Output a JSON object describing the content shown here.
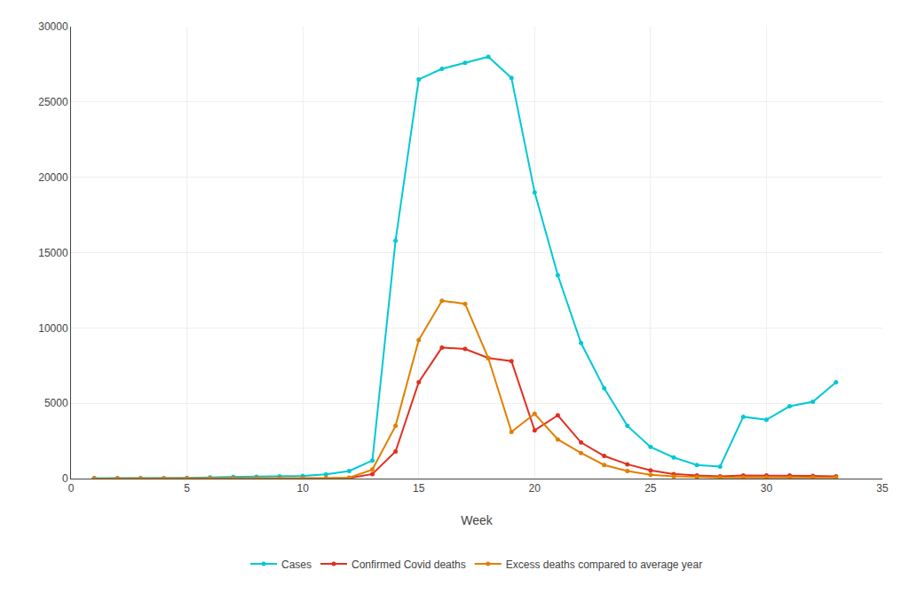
{
  "chart_data": {
    "type": "line",
    "xlabel": "Week",
    "x": [
      1,
      2,
      3,
      4,
      5,
      6,
      7,
      8,
      9,
      10,
      11,
      12,
      13,
      14,
      15,
      16,
      17,
      18,
      19,
      20,
      21,
      22,
      23,
      24,
      25,
      26,
      27,
      28,
      29,
      30,
      31,
      32,
      33
    ],
    "series": [
      {
        "name": "Cases",
        "color": "#00c8d4",
        "marker": "circle",
        "values": [
          30,
          30,
          30,
          30,
          50,
          80,
          100,
          120,
          150,
          180,
          280,
          500,
          1200,
          15800,
          26500,
          27200,
          27600,
          28000,
          26600,
          19000,
          13500,
          9000,
          6000,
          3500,
          2100,
          1400,
          900,
          800,
          4100,
          3900,
          4800,
          5100,
          6400
        ]
      },
      {
        "name": "Confirmed Covid deaths",
        "color": "#e03020",
        "marker": "circle",
        "values": [
          5,
          5,
          5,
          5,
          5,
          5,
          5,
          5,
          5,
          5,
          10,
          30,
          300,
          1800,
          6400,
          8700,
          8600,
          8000,
          7800,
          3200,
          4200,
          2400,
          1500,
          950,
          550,
          300,
          200,
          150,
          200,
          200,
          200,
          180,
          150
        ]
      },
      {
        "name": "Excess deaths compared to average year",
        "color": "#e08000",
        "marker": "circle",
        "values": [
          5,
          5,
          5,
          5,
          5,
          5,
          5,
          5,
          5,
          5,
          30,
          60,
          600,
          3500,
          9200,
          11800,
          11600,
          8000,
          3100,
          4300,
          2600,
          1700,
          900,
          500,
          250,
          150,
          100,
          80,
          80,
          80,
          80,
          80,
          80
        ]
      }
    ],
    "xlim": [
      0,
      35
    ],
    "ylim": [
      0,
      30000
    ],
    "xticks": [
      0,
      5,
      10,
      15,
      20,
      25,
      30,
      35
    ],
    "yticks": [
      0,
      5000,
      10000,
      15000,
      20000,
      25000,
      30000
    ],
    "grid": true,
    "legend": "bottom"
  }
}
